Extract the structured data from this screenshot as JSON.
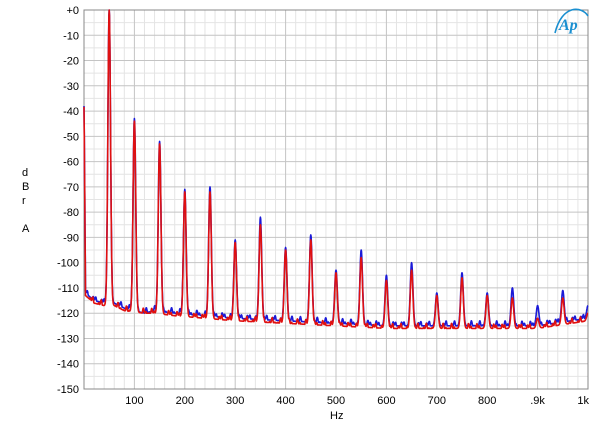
{
  "chart_data": {
    "type": "line",
    "title": "",
    "xlabel": "Hz",
    "ylabel": [
      "d",
      "B",
      "r",
      "",
      "A"
    ],
    "xlim": [
      0,
      1000
    ],
    "ylim": [
      -150,
      0
    ],
    "grid": true,
    "x_ticks": [
      {
        "value": 100,
        "label": "100"
      },
      {
        "value": 200,
        "label": "200"
      },
      {
        "value": 300,
        "label": "300"
      },
      {
        "value": 400,
        "label": "400"
      },
      {
        "value": 500,
        "label": "500"
      },
      {
        "value": 600,
        "label": "600"
      },
      {
        "value": 700,
        "label": "700"
      },
      {
        "value": 800,
        "label": "800"
      },
      {
        "value": 900,
        "label": ".9k"
      },
      {
        "value": 1000,
        "label": "1k"
      }
    ],
    "y_ticks": [
      {
        "value": 0,
        "label": "+0"
      },
      {
        "value": -10,
        "label": "-10"
      },
      {
        "value": -20,
        "label": "-20"
      },
      {
        "value": -30,
        "label": "-30"
      },
      {
        "value": -40,
        "label": "-40"
      },
      {
        "value": -50,
        "label": "-50"
      },
      {
        "value": -60,
        "label": "-60"
      },
      {
        "value": -70,
        "label": "-70"
      },
      {
        "value": -80,
        "label": "-80"
      },
      {
        "value": -90,
        "label": "-90"
      },
      {
        "value": -100,
        "label": "-100"
      },
      {
        "value": -110,
        "label": "-110"
      },
      {
        "value": -120,
        "label": "-120"
      },
      {
        "value": -130,
        "label": "-130"
      },
      {
        "value": -140,
        "label": "-140"
      },
      {
        "value": -150,
        "label": "-150"
      }
    ],
    "series": [
      {
        "color": "#1a1ad8",
        "peaks": [
          [
            50,
            0
          ],
          [
            100,
            -43
          ],
          [
            150,
            -52
          ],
          [
            200,
            -71
          ],
          [
            250,
            -70
          ],
          [
            300,
            -91
          ],
          [
            350,
            -82
          ],
          [
            400,
            -94
          ],
          [
            450,
            -89
          ],
          [
            500,
            -103
          ],
          [
            550,
            -95
          ],
          [
            600,
            -105
          ],
          [
            650,
            -100
          ],
          [
            700,
            -112
          ],
          [
            750,
            -104
          ],
          [
            800,
            -112
          ],
          [
            850,
            -110
          ],
          [
            900,
            -117
          ],
          [
            950,
            -111
          ],
          [
            1000,
            -117
          ]
        ],
        "floor": [
          [
            0,
            -38
          ],
          [
            3,
            -112
          ],
          [
            20,
            -115
          ],
          [
            40,
            -116
          ],
          [
            60,
            -116
          ],
          [
            80,
            -118
          ],
          [
            120,
            -120
          ],
          [
            140,
            -119
          ],
          [
            180,
            -120
          ],
          [
            240,
            -121
          ],
          [
            300,
            -122
          ],
          [
            400,
            -123
          ],
          [
            500,
            -124
          ],
          [
            600,
            -125
          ],
          [
            700,
            -125
          ],
          [
            800,
            -125
          ],
          [
            900,
            -125
          ],
          [
            1000,
            -122
          ]
        ]
      },
      {
        "color": "#e01010",
        "peaks": [
          [
            50,
            0
          ],
          [
            100,
            -44
          ],
          [
            150,
            -53
          ],
          [
            200,
            -72
          ],
          [
            250,
            -72
          ],
          [
            300,
            -92
          ],
          [
            350,
            -85
          ],
          [
            400,
            -95
          ],
          [
            450,
            -91
          ],
          [
            500,
            -104
          ],
          [
            550,
            -98
          ],
          [
            600,
            -107
          ],
          [
            650,
            -103
          ],
          [
            700,
            -113
          ],
          [
            750,
            -106
          ],
          [
            800,
            -113
          ],
          [
            850,
            -114
          ],
          [
            900,
            -122
          ],
          [
            950,
            -114
          ],
          [
            1000,
            -120
          ]
        ],
        "floor": [
          [
            0,
            -40
          ],
          [
            3,
            -113
          ],
          [
            20,
            -116
          ],
          [
            40,
            -117
          ],
          [
            60,
            -117
          ],
          [
            80,
            -119
          ],
          [
            120,
            -120
          ],
          [
            140,
            -120
          ],
          [
            180,
            -121
          ],
          [
            240,
            -122
          ],
          [
            300,
            -123
          ],
          [
            400,
            -124
          ],
          [
            500,
            -125
          ],
          [
            600,
            -126
          ],
          [
            700,
            -126
          ],
          [
            800,
            -126
          ],
          [
            900,
            -126
          ],
          [
            1000,
            -123
          ]
        ]
      }
    ]
  },
  "logo": {
    "text": "Ap",
    "color": "#1a8fd0"
  }
}
